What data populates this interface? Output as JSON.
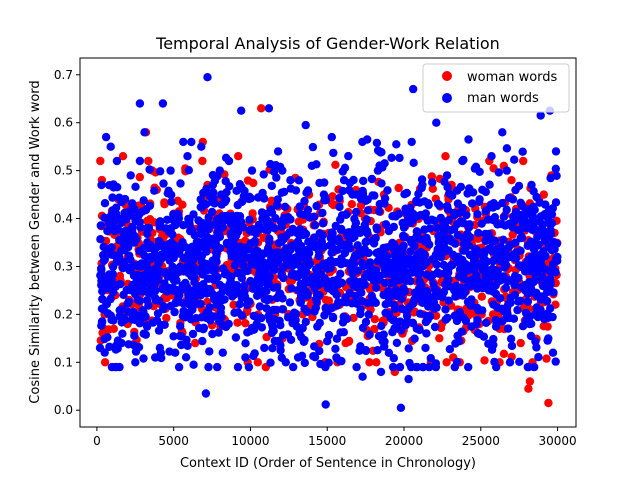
{
  "chart_data": {
    "type": "scatter",
    "title": "Temporal Analysis of Gender-Work Relation",
    "xlabel": "Context ID (Order of Sentence in Chronology)",
    "ylabel": "Cosine Similarity between Gender and Work word",
    "xlim": [
      -1100,
      31200
    ],
    "ylim": [
      -0.035,
      0.735
    ],
    "xticks": [
      0,
      5000,
      10000,
      15000,
      20000,
      25000,
      30000
    ],
    "xtick_labels": [
      "0",
      "5000",
      "10000",
      "15000",
      "20000",
      "25000",
      "30000"
    ],
    "yticks": [
      0.0,
      0.1,
      0.2,
      0.3,
      0.4,
      0.5,
      0.6,
      0.7
    ],
    "ytick_labels": [
      "0.0",
      "0.1",
      "0.2",
      "0.3",
      "0.4",
      "0.5",
      "0.6",
      "0.7"
    ],
    "grid": false,
    "legend_position": "top-right",
    "series": [
      {
        "name": "woman words",
        "color": "#ff0000",
        "x": [
          3200,
          3600,
          1700,
          1400,
          10700,
          29400,
          28200,
          28100,
          29600,
          29100,
          28800,
          29300,
          22700,
          26500,
          23200,
          27600,
          25300,
          26100,
          27000,
          24300,
          23500,
          21800,
          22300,
          19400,
          19700,
          18400,
          17500,
          17800,
          16200,
          15400,
          14700,
          13200,
          12700,
          12100,
          11000,
          10500,
          9800,
          9200,
          8700,
          8300,
          7600,
          7200,
          6900,
          6400,
          6100,
          5800,
          5300,
          5000,
          4600,
          4200,
          3900,
          3500,
          2900,
          2600,
          2300,
          2000,
          1800,
          1500,
          1200,
          900,
          700,
          500,
          13900,
          14300,
          15100,
          15800,
          16600,
          17200,
          18100,
          18900,
          19200,
          20400,
          21100,
          21500,
          22900,
          23900,
          24700,
          25800,
          26800,
          27300,
          28500,
          29800,
          29000,
          27900,
          26200,
          24900,
          23100,
          20900,
          19900,
          18700,
          17000,
          16000,
          14500,
          13400,
          12400,
          11500,
          10200,
          8900,
          7900,
          6700,
          5600,
          4400,
          3300,
          2100,
          1100
        ],
        "y": [
          0.58,
          0.5,
          0.53,
          0.44,
          0.63,
          0.015,
          0.06,
          0.045,
          0.49,
          0.45,
          0.44,
          0.34,
          0.53,
          0.51,
          0.11,
          0.14,
          0.29,
          0.23,
          0.48,
          0.35,
          0.21,
          0.2,
          0.15,
          0.08,
          0.3,
          0.54,
          0.22,
          0.36,
          0.14,
          0.33,
          0.39,
          0.23,
          0.27,
          0.15,
          0.09,
          0.35,
          0.21,
          0.53,
          0.41,
          0.19,
          0.31,
          0.47,
          0.56,
          0.14,
          0.38,
          0.25,
          0.36,
          0.41,
          0.29,
          0.22,
          0.46,
          0.32,
          0.42,
          0.26,
          0.38,
          0.18,
          0.35,
          0.28,
          0.24,
          0.33,
          0.39,
          0.2,
          0.25,
          0.31,
          0.37,
          0.22,
          0.43,
          0.29,
          0.19,
          0.34,
          0.26,
          0.4,
          0.23,
          0.31,
          0.44,
          0.27,
          0.36,
          0.2,
          0.33,
          0.42,
          0.21,
          0.37,
          0.29,
          0.25,
          0.39,
          0.18,
          0.47,
          0.3,
          0.16,
          0.45,
          0.24,
          0.36,
          0.3,
          0.2,
          0.42,
          0.27,
          0.34,
          0.22,
          0.38,
          0.25,
          0.31,
          0.43,
          0.28,
          0.23,
          0.17
        ]
      },
      {
        "name": "man words",
        "color": "#0000ff",
        "x": [
          7200,
          2800,
          4300,
          9400,
          11200,
          13600,
          15300,
          17600,
          19500,
          20600,
          22100,
          24200,
          26400,
          28900,
          29500,
          19800,
          14900,
          7100,
          600,
          900,
          300,
          1300,
          2200,
          3100,
          4800,
          5900,
          6800,
          8100,
          8600,
          10100,
          11800,
          12600,
          14000,
          16100,
          16900,
          18300,
          21200,
          22800,
          23800,
          25100,
          25700,
          27100,
          28300,
          29900,
          200,
          2500,
          5100,
          9900,
          13100,
          17300,
          21400,
          26900,
          29700,
          18500,
          20300,
          15600,
          12300,
          10900,
          8200,
          6300,
          4100,
          3800,
          1600
        ],
        "y": [
          0.695,
          0.64,
          0.64,
          0.625,
          0.63,
          0.595,
          0.57,
          0.565,
          0.555,
          0.67,
          0.6,
          0.565,
          0.58,
          0.615,
          0.625,
          0.005,
          0.012,
          0.035,
          0.57,
          0.55,
          0.47,
          0.52,
          0.49,
          0.58,
          0.5,
          0.53,
          0.55,
          0.45,
          0.52,
          0.5,
          0.54,
          0.48,
          0.51,
          0.48,
          0.45,
          0.5,
          0.47,
          0.49,
          0.52,
          0.46,
          0.53,
          0.44,
          0.47,
          0.54,
          0.13,
          0.1,
          0.12,
          0.09,
          0.11,
          0.07,
          0.13,
          0.1,
          0.12,
          0.08,
          0.065,
          0.11,
          0.1,
          0.13,
          0.12,
          0.095,
          0.13,
          0.11,
          0.14
        ]
      }
    ]
  }
}
